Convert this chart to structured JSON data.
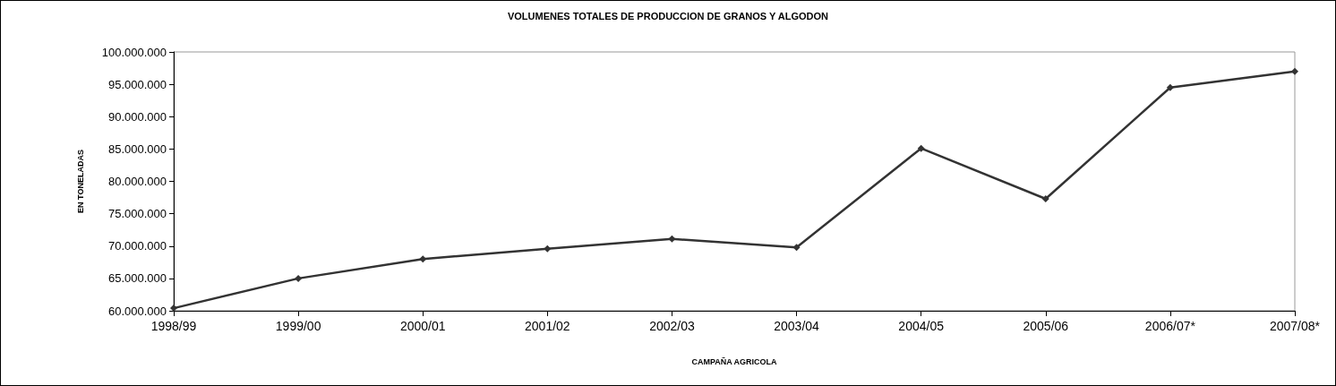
{
  "chart_data": {
    "type": "line",
    "title": "VOLUMENES TOTALES DE PRODUCCION DE GRANOS Y ALGODON",
    "xlabel": "CAMPAÑA AGRICOLA",
    "ylabel": "EN TONELADAS",
    "categories": [
      "1998/99",
      "1999/00",
      "2000/01",
      "2001/02",
      "2002/03",
      "2003/04",
      "2004/05",
      "2005/06",
      "2006/07*",
      "2007/08*"
    ],
    "series": [
      {
        "color": "#333333",
        "values": [
          60400000,
          65000000,
          68000000,
          69600000,
          71100000,
          69800000,
          85100000,
          77300000,
          94500000,
          97000000
        ]
      }
    ],
    "ylim": [
      60000000,
      100000000
    ],
    "yticks": [
      {
        "value": 60000000,
        "label": "60.000.000"
      },
      {
        "value": 65000000,
        "label": "65.000.000"
      },
      {
        "value": 70000000,
        "label": "70.000.000"
      },
      {
        "value": 75000000,
        "label": "75.000.000"
      },
      {
        "value": 80000000,
        "label": "80.000.000"
      },
      {
        "value": 85000000,
        "label": "85.000.000"
      },
      {
        "value": 90000000,
        "label": "90.000.000"
      },
      {
        "value": 95000000,
        "label": "95.000.000"
      },
      {
        "value": 100000000,
        "label": "100.000.000"
      }
    ],
    "grid": false,
    "marker": "diamond",
    "line_style": "solid"
  }
}
